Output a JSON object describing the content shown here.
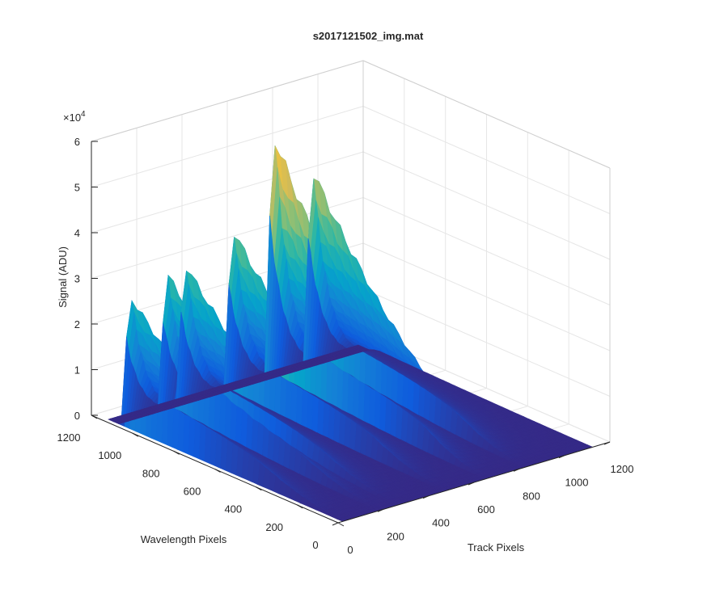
{
  "figure": {
    "title": "s2017121502_img.mat"
  },
  "chart_data": {
    "type": "surface",
    "title": "s2017121502_img.mat",
    "xlabel": "Track Pixels",
    "ylabel": "Wavelength Pixels",
    "zlabel": "Signal (ADU)",
    "xlim": [
      0,
      1200
    ],
    "ylim": [
      0,
      1200
    ],
    "zlim": [
      0,
      60000
    ],
    "x_ticks": [
      "0",
      "200",
      "400",
      "600",
      "800",
      "1000",
      "1200"
    ],
    "y_ticks": [
      "0",
      "200",
      "400",
      "600",
      "800",
      "1000",
      "1200"
    ],
    "z_ticks": [
      "0",
      "1",
      "2",
      "3",
      "4",
      "5",
      "6"
    ],
    "z_exponent_label": "×10",
    "z_exponent_power": "4",
    "grid": true,
    "colormap": "parula",
    "colormap_stops": [
      "#352a87",
      "#0f5cdd",
      "#1481d6",
      "#06a4ca",
      "#2eb7a4",
      "#87bf77",
      "#d1bb59",
      "#fec832",
      "#f9fb0e"
    ],
    "peaks": [
      {
        "track_pixel": 30,
        "peak_signal": 29000
      },
      {
        "track_pixel": 190,
        "peak_signal": 32000
      },
      {
        "track_pixel": 270,
        "peak_signal": 33000
      },
      {
        "track_pixel": 480,
        "peak_signal": 38000
      },
      {
        "track_pixel": 660,
        "peak_signal": 57000
      },
      {
        "track_pixel": 830,
        "peak_signal": 47000
      }
    ],
    "peak_wavelength_pixel": 1050
  }
}
